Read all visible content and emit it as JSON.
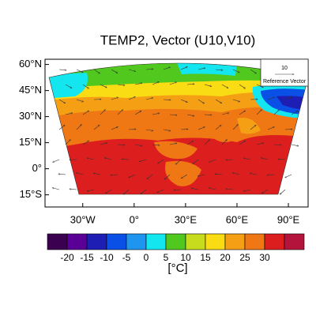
{
  "map": {
    "title": "TEMP2, Vector (U10,V10)",
    "lon_range": [
      -52,
      101.5
    ],
    "lat_range": [
      -22,
      63
    ],
    "lat_ticks": [
      {
        "value": 60,
        "label": "60°N"
      },
      {
        "value": 45,
        "label": "45°N"
      },
      {
        "value": 30,
        "label": "30°N"
      },
      {
        "value": 15,
        "label": "15°N"
      },
      {
        "value": 0,
        "label": "0°"
      },
      {
        "value": -15,
        "label": "15°S"
      }
    ],
    "lon_ticks": [
      {
        "value": -30,
        "label": "30°W"
      },
      {
        "value": 0,
        "label": "0°"
      },
      {
        "value": 30,
        "label": "30°E"
      },
      {
        "value": 60,
        "label": "60°E"
      },
      {
        "value": 90,
        "label": "90°E"
      }
    ],
    "reference_vector": {
      "value": 10,
      "label": "Reference Vector"
    },
    "colorbar": {
      "levels": [
        -20,
        -15,
        -10,
        -5,
        0,
        5,
        10,
        15,
        20,
        25,
        30
      ],
      "colors": [
        "#3c0050",
        "#5a0096",
        "#1e1eb4",
        "#0a50e6",
        "#1e96f0",
        "#14e6f0",
        "#50c81e",
        "#c8dc1e",
        "#fadc14",
        "#f5a014",
        "#f07814",
        "#dc1e1e",
        "#b4143c"
      ],
      "unit": "[°C]"
    }
  }
}
